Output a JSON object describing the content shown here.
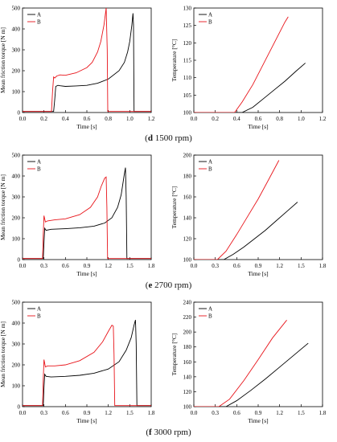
{
  "colors": {
    "A": "#000000",
    "B": "#e8141a"
  },
  "rows": [
    {
      "caption": {
        "letter": "d",
        "rest": " 1500 rpm"
      },
      "torque": {
        "type": "line",
        "ylabel": "Mean friction torque [N m]",
        "xlabel": "Time [s]",
        "xlim": [
          0,
          1.2
        ],
        "xticks": [
          0.0,
          0.2,
          0.4,
          0.6,
          0.8,
          1.0,
          1.2
        ],
        "ylim": [
          0,
          500
        ],
        "yticks": [
          0,
          100,
          200,
          300,
          400,
          500
        ],
        "legend": [
          "A",
          "B"
        ],
        "series": [
          {
            "name": "A",
            "x": [
              0.0,
              0.29,
              0.3,
              0.31,
              0.33,
              0.35,
              0.4,
              0.5,
              0.6,
              0.7,
              0.8,
              0.9,
              0.95,
              0.98,
              1.0,
              1.02,
              1.03,
              1.035,
              1.04,
              1.045,
              1.2
            ],
            "y": [
              5,
              5,
              60,
              125,
              130,
              128,
              125,
              127,
              130,
              140,
              160,
              200,
              240,
              290,
              340,
              420,
              475,
              420,
              5,
              5,
              5
            ]
          },
          {
            "name": "B",
            "x": [
              0.0,
              0.27,
              0.28,
              0.29,
              0.3,
              0.32,
              0.35,
              0.4,
              0.5,
              0.6,
              0.65,
              0.7,
              0.73,
              0.76,
              0.78,
              0.79,
              0.795,
              1.2
            ],
            "y": [
              5,
              5,
              100,
              170,
              165,
              175,
              180,
              178,
              190,
              215,
              240,
              290,
              340,
              420,
              500,
              300,
              5,
              5
            ]
          }
        ]
      },
      "temp": {
        "type": "line",
        "ylabel": "Temperature [°C]",
        "xlabel": "Time [s]",
        "xlim": [
          0,
          1.2
        ],
        "xticks": [
          0.0,
          0.2,
          0.4,
          0.6,
          0.8,
          1.0,
          1.2
        ],
        "ylim": [
          100,
          130
        ],
        "yticks": [
          100,
          105,
          110,
          115,
          120,
          125,
          130
        ],
        "legend": [
          "A",
          "B"
        ],
        "series": [
          {
            "name": "A",
            "x": [
              0.0,
              0.45,
              0.55,
              0.65,
              0.75,
              0.85,
              0.95,
              1.04
            ],
            "y": [
              100,
              100,
              101.5,
              104,
              106.5,
              109,
              111.8,
              114.2
            ]
          },
          {
            "name": "B",
            "x": [
              0.0,
              0.38,
              0.45,
              0.55,
              0.65,
              0.75,
              0.85,
              0.88
            ],
            "y": [
              100,
              100,
              103,
              108,
              114,
              120,
              126,
              127.5
            ]
          }
        ]
      }
    },
    {
      "caption": {
        "letter": "e",
        "rest": " 2700 rpm"
      },
      "torque": {
        "type": "line",
        "ylabel": "Mean friction torque [N m]",
        "xlabel": "Time [s]",
        "xlim": [
          0,
          1.8
        ],
        "xticks": [
          0.0,
          0.3,
          0.6,
          0.9,
          1.2,
          1.5,
          1.8
        ],
        "ylim": [
          0,
          500
        ],
        "yticks": [
          0,
          100,
          200,
          300,
          400,
          500
        ],
        "legend": [
          "A",
          "B"
        ],
        "series": [
          {
            "name": "A",
            "x": [
              0.0,
              0.29,
              0.3,
              0.31,
              0.33,
              0.4,
              0.6,
              0.8,
              1.0,
              1.15,
              1.25,
              1.33,
              1.38,
              1.42,
              1.44,
              1.45,
              1.46,
              1.8
            ],
            "y": [
              5,
              5,
              80,
              150,
              140,
              145,
              148,
              152,
              160,
              175,
              200,
              250,
              310,
              400,
              440,
              300,
              5,
              5
            ]
          },
          {
            "name": "B",
            "x": [
              0.0,
              0.28,
              0.29,
              0.3,
              0.32,
              0.35,
              0.45,
              0.6,
              0.8,
              0.95,
              1.05,
              1.1,
              1.15,
              1.17,
              1.18,
              1.19,
              1.8
            ],
            "y": [
              5,
              5,
              120,
              210,
              180,
              185,
              190,
              195,
              215,
              250,
              300,
              350,
              390,
              395,
              250,
              5,
              5
            ]
          }
        ]
      },
      "temp": {
        "type": "line",
        "ylabel": "Temperature [°C]",
        "xlabel": "Time [s]",
        "xlim": [
          0,
          1.8
        ],
        "xticks": [
          0.0,
          0.3,
          0.6,
          0.9,
          1.2,
          1.5,
          1.8
        ],
        "ylim": [
          100,
          200
        ],
        "yticks": [
          100,
          120,
          140,
          160,
          180,
          200
        ],
        "legend": [
          "A",
          "B"
        ],
        "series": [
          {
            "name": "A",
            "x": [
              0.0,
              0.42,
              0.55,
              0.7,
              0.85,
              1.0,
              1.15,
              1.3,
              1.45
            ],
            "y": [
              100,
              100,
              105,
              112,
              120,
              128,
              137,
              146,
              155
            ]
          },
          {
            "name": "B",
            "x": [
              0.0,
              0.33,
              0.45,
              0.6,
              0.75,
              0.9,
              1.05,
              1.19
            ],
            "y": [
              100,
              100,
              108,
              124,
              141,
              158,
              177,
              195
            ]
          }
        ]
      }
    },
    {
      "caption": {
        "letter": "f",
        "rest": " 3000 rpm"
      },
      "torque": {
        "type": "line",
        "ylabel": "Mean friction torque [N m]",
        "xlabel": "Time [s]",
        "xlim": [
          0,
          1.8
        ],
        "xticks": [
          0.0,
          0.3,
          0.6,
          0.9,
          1.2,
          1.5,
          1.8
        ],
        "ylim": [
          0,
          500
        ],
        "yticks": [
          0,
          100,
          200,
          300,
          400,
          500
        ],
        "legend": [
          "A",
          "B"
        ],
        "series": [
          {
            "name": "A",
            "x": [
              0.0,
              0.29,
              0.3,
              0.31,
              0.33,
              0.4,
              0.6,
              0.8,
              1.0,
              1.2,
              1.35,
              1.45,
              1.52,
              1.56,
              1.58,
              1.59,
              1.6,
              1.8
            ],
            "y": [
              5,
              5,
              90,
              155,
              145,
              142,
              145,
              150,
              160,
              180,
              215,
              270,
              330,
              390,
              415,
              300,
              5,
              5
            ]
          },
          {
            "name": "B",
            "x": [
              0.0,
              0.28,
              0.29,
              0.3,
              0.32,
              0.35,
              0.45,
              0.6,
              0.8,
              1.0,
              1.12,
              1.2,
              1.25,
              1.27,
              1.28,
              1.29,
              1.8
            ],
            "y": [
              5,
              5,
              130,
              225,
              190,
              195,
              195,
              200,
              220,
              260,
              310,
              360,
              390,
              385,
              250,
              5,
              5
            ]
          }
        ]
      },
      "temp": {
        "type": "line",
        "ylabel": "Temperature [°C]",
        "xlabel": "Time [s]",
        "xlim": [
          0,
          1.8
        ],
        "xticks": [
          0.0,
          0.3,
          0.6,
          0.9,
          1.2,
          1.5,
          1.8
        ],
        "ylim": [
          100,
          240
        ],
        "yticks": [
          100,
          120,
          140,
          160,
          180,
          200,
          220,
          240
        ],
        "legend": [
          "A",
          "B"
        ],
        "series": [
          {
            "name": "A",
            "x": [
              0.0,
              0.45,
              0.6,
              0.8,
              1.0,
              1.2,
              1.4,
              1.6
            ],
            "y": [
              100,
              100,
              108,
              122,
              137,
              153,
              169,
              185
            ]
          },
          {
            "name": "B",
            "x": [
              0.0,
              0.35,
              0.5,
              0.7,
              0.9,
              1.1,
              1.3
            ],
            "y": [
              100,
              100,
              110,
              135,
              163,
              192,
              216
            ]
          }
        ]
      }
    }
  ]
}
